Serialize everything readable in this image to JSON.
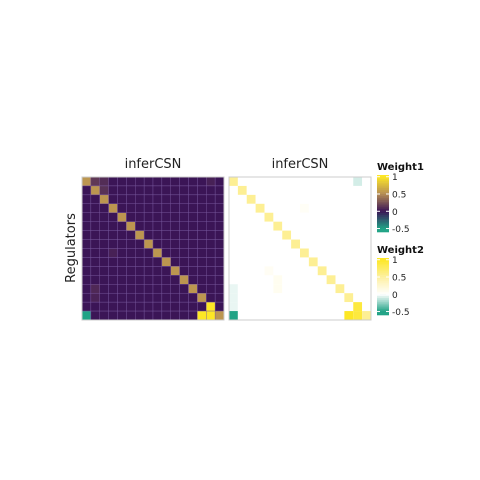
{
  "chart_data": {
    "type": "heatmap",
    "ylabel": "Regulators",
    "xlabel": "",
    "panels": [
      {
        "title": "inferCSN",
        "palette": "viridis-like (teal → dark purple → gold → yellow)",
        "background": "#3b1556",
        "diagonal_value": 0.55,
        "edge_color": "#7a5aa0",
        "overrides": [
          {
            "row": 15,
            "col": 0,
            "value": -0.5
          },
          {
            "row": 15,
            "col": 13,
            "value": 1.0
          },
          {
            "row": 14,
            "col": 14,
            "value": 1.0
          },
          {
            "row": 15,
            "col": 14,
            "value": 1.0
          },
          {
            "row": 0,
            "col": 1,
            "value": 0.15
          },
          {
            "row": 0,
            "col": 2,
            "value": 0.1
          },
          {
            "row": 1,
            "col": 2,
            "value": 0.12
          },
          {
            "row": 0,
            "col": 14,
            "value": 0.05
          },
          {
            "row": 8,
            "col": 3,
            "value": 0.05
          },
          {
            "row": 12,
            "col": 1,
            "value": 0.08
          },
          {
            "row": 13,
            "col": 1,
            "value": 0.06
          }
        ]
      },
      {
        "title": "inferCSN",
        "palette": "teal → white → yellow",
        "background": "#ffffff",
        "diagonal_value": 0.55,
        "edge_color": "#ffffff",
        "overrides": [
          {
            "row": 15,
            "col": 0,
            "value": -0.5
          },
          {
            "row": 15,
            "col": 13,
            "value": 1.0
          },
          {
            "row": 14,
            "col": 14,
            "value": 0.9
          },
          {
            "row": 15,
            "col": 14,
            "value": 0.9
          },
          {
            "row": 0,
            "col": 14,
            "value": -0.1
          },
          {
            "row": 12,
            "col": 0,
            "value": -0.05
          },
          {
            "row": 13,
            "col": 0,
            "value": -0.05
          },
          {
            "row": 14,
            "col": 0,
            "value": -0.05
          },
          {
            "row": 11,
            "col": 5,
            "value": 0.08
          },
          {
            "row": 12,
            "col": 5,
            "value": 0.08
          },
          {
            "row": 10,
            "col": 4,
            "value": 0.06
          },
          {
            "row": 3,
            "col": 8,
            "value": 0.05
          }
        ]
      }
    ],
    "grid_size": 16,
    "legends": [
      {
        "title": "Weight1",
        "ticks": [
          "1",
          "0.5",
          "0",
          "-0.5"
        ],
        "tick_values": [
          1,
          0.5,
          0,
          -0.5
        ],
        "range": [
          -0.6,
          1.05
        ],
        "stops": [
          "#21a386",
          "#3b1556",
          "#c0a05a",
          "#fde725"
        ]
      },
      {
        "title": "Weight2",
        "ticks": [
          "1",
          "0.5",
          "0",
          "-0.5"
        ],
        "tick_values": [
          1,
          0.5,
          0,
          -0.5
        ],
        "range": [
          -0.6,
          1.05
        ],
        "stops": [
          "#21a386",
          "#ffffff",
          "#fde725"
        ]
      }
    ]
  }
}
